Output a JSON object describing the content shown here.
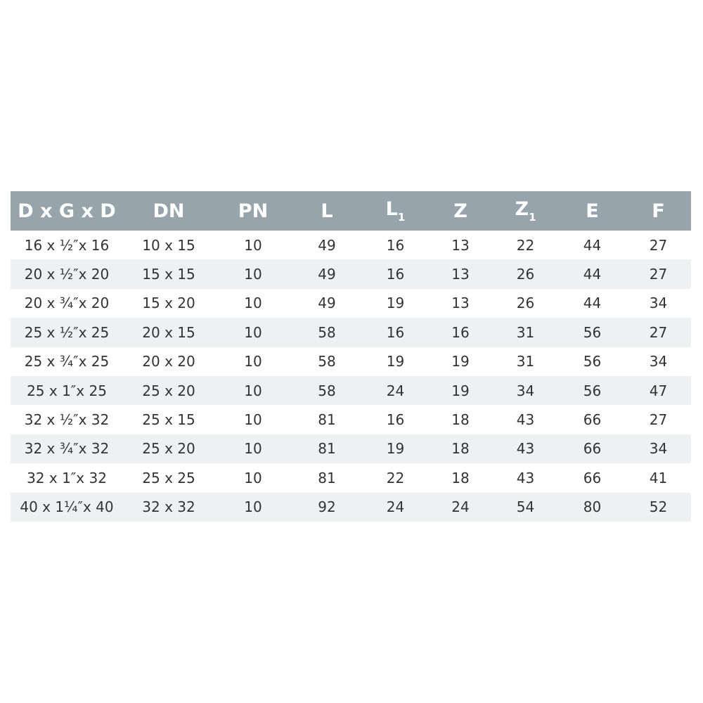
{
  "header": [
    {
      "label": "D x G x D",
      "sub": ""
    },
    {
      "label": "DN",
      "sub": ""
    },
    {
      "label": "PN",
      "sub": ""
    },
    {
      "label": "L",
      "sub": ""
    },
    {
      "label": "L",
      "sub": "1"
    },
    {
      "label": "Z",
      "sub": ""
    },
    {
      "label": "Z",
      "sub": "1"
    },
    {
      "label": "E",
      "sub": ""
    },
    {
      "label": "F",
      "sub": ""
    }
  ],
  "rows": [
    [
      "16 x ½″x 16",
      "10 x 15",
      "10",
      "49",
      "16",
      "13",
      "22",
      "44",
      "27"
    ],
    [
      "20 x ½″x 20",
      "15 x 15",
      "10",
      "49",
      "16",
      "13",
      "26",
      "44",
      "27"
    ],
    [
      "20 x ¾″x 20",
      "15 x 20",
      "10",
      "49",
      "19",
      "13",
      "26",
      "44",
      "34"
    ],
    [
      "25 x ½″x 25",
      "20 x 15",
      "10",
      "58",
      "16",
      "16",
      "31",
      "56",
      "27"
    ],
    [
      "25 x ¾″x 25",
      "20 x 20",
      "10",
      "58",
      "19",
      "19",
      "31",
      "56",
      "34"
    ],
    [
      "25 x 1″x 25",
      "25 x 20",
      "10",
      "58",
      "24",
      "19",
      "34",
      "56",
      "47"
    ],
    [
      "32 x ½″x 32",
      "25 x 15",
      "10",
      "81",
      "16",
      "18",
      "43",
      "66",
      "27"
    ],
    [
      "32 x ¾″x 32",
      "25 x 20",
      "10",
      "81",
      "19",
      "18",
      "43",
      "66",
      "34"
    ],
    [
      "32 x 1″x 32",
      "25 x 25",
      "10",
      "81",
      "22",
      "18",
      "43",
      "66",
      "41"
    ],
    [
      "40 x 1¼″x 40",
      "32 x 32",
      "10",
      "92",
      "24",
      "24",
      "54",
      "80",
      "52"
    ]
  ],
  "colors": {
    "header_bg": "#98a4ac",
    "alt_row_bg": "#eef0f1",
    "text": "#333333"
  }
}
